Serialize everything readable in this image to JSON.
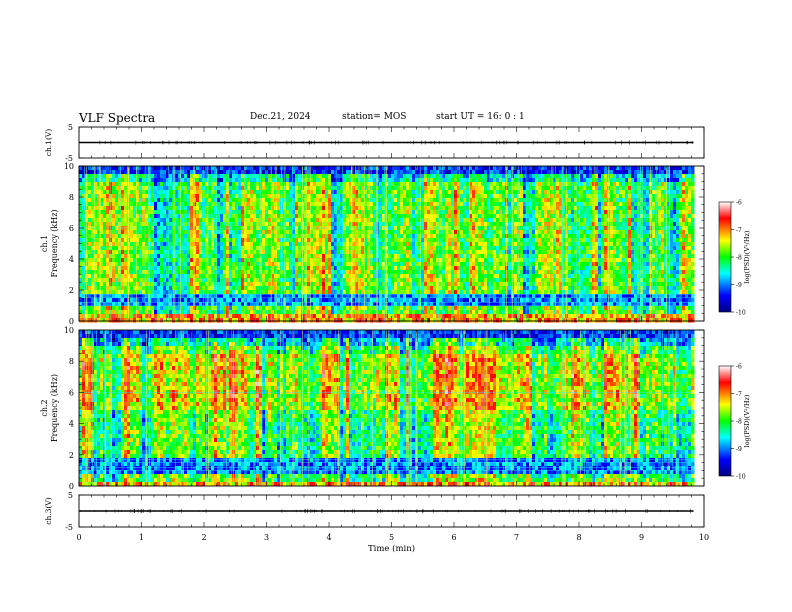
{
  "header": {
    "title": "VLF Spectra",
    "date": "Dec.21, 2024",
    "station": "station= MOS",
    "start": "start  UT  =   16: 0  : 1"
  },
  "chart_data": [
    {
      "type": "line",
      "panel": "ch1-waveform",
      "ylabel": "ch.1(V)",
      "yticks": [
        "5",
        "-5"
      ],
      "ylim": [
        -5,
        5
      ],
      "baseline_value": 0
    },
    {
      "type": "heatmap",
      "panel": "ch1-spectrogram",
      "ylabel_line1": "ch.1",
      "ylabel_line2": "Frequency (kHz)",
      "ylim": [
        0,
        10
      ],
      "yticks": [
        "0",
        "2",
        "4",
        "6",
        "8",
        "10"
      ],
      "colorbar": {
        "label": "log(PSD)(V²/Hz)",
        "ticks": [
          "-6",
          "-7",
          "-8",
          "-9",
          "-10"
        ],
        "range": [
          -10,
          -6
        ]
      }
    },
    {
      "type": "heatmap",
      "panel": "ch2-spectrogram",
      "ylabel_line1": "ch.2",
      "ylabel_line2": "Frequency (kHz)",
      "ylim": [
        0,
        10
      ],
      "yticks": [
        "0",
        "2",
        "4",
        "6",
        "8",
        "10"
      ],
      "colorbar": {
        "label": "log(PSD)(V²/Hz)",
        "ticks": [
          "-6",
          "-7",
          "-8",
          "-9",
          "-10"
        ],
        "range": [
          -10,
          -6
        ]
      }
    },
    {
      "type": "line",
      "panel": "ch3-waveform",
      "ylabel": "ch.3(V)",
      "yticks": [
        "5",
        "-5"
      ],
      "ylim": [
        -5,
        5
      ],
      "baseline_value": 0
    }
  ],
  "xaxis": {
    "label": "Time (min)",
    "xlim": [
      0,
      10
    ],
    "ticks": [
      "0",
      "1",
      "2",
      "3",
      "4",
      "5",
      "6",
      "7",
      "8",
      "9",
      "10"
    ],
    "data_end": 9.83
  },
  "colors": {
    "frame": "#000000",
    "jet": [
      "#000080",
      "#0000ff",
      "#00ffff",
      "#00ff00",
      "#ffff00",
      "#ff0000",
      "#ffffff"
    ]
  }
}
